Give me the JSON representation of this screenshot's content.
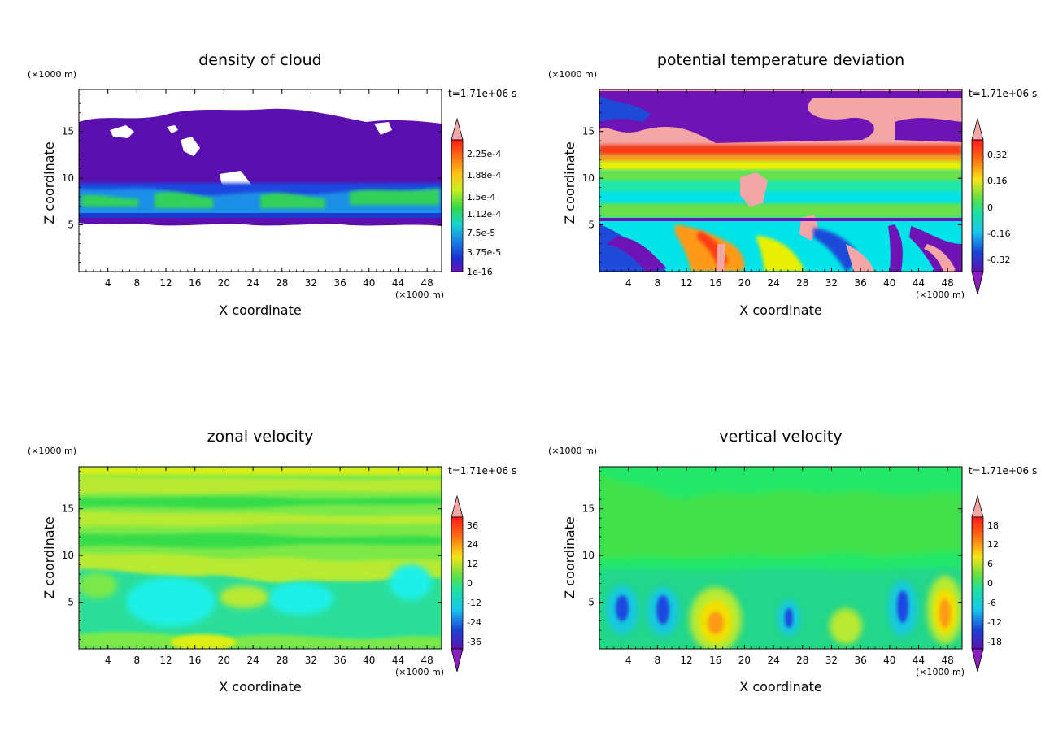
{
  "panels": [
    {
      "id": "cloud",
      "title": "density of cloud",
      "xlabel": "X coordinate",
      "ylabel": "Z coordinate",
      "x_unit": "(×1000 m)",
      "z_unit": "(×1000 m)",
      "time_label": "t=1.71e+06 s",
      "x_ticks": [
        "4",
        "8",
        "12",
        "16",
        "20",
        "24",
        "28",
        "32",
        "36",
        "40",
        "44",
        "48"
      ],
      "z_ticks": [
        "5",
        "10",
        "15"
      ],
      "colorbar_labels": [
        "2.25e-4",
        "1.88e-4",
        "1.5e-4",
        "1.12e-4",
        "7.5e-5",
        "3.75e-5",
        "1e-16"
      ],
      "colors": {
        "background": "#ffffff",
        "primary": "#5a0fae",
        "band": "#1a47e0",
        "accent": "#31d25a"
      }
    },
    {
      "id": "theta",
      "title": "potential temperature deviation",
      "xlabel": "X coordinate",
      "ylabel": "Z coordinate",
      "x_unit": "(×1000 m)",
      "z_unit": "(×1000 m)",
      "time_label": "t=1.71e+06 s",
      "x_ticks": [
        "4",
        "8",
        "12",
        "16",
        "20",
        "24",
        "28",
        "32",
        "36",
        "40",
        "44",
        "48"
      ],
      "z_ticks": [
        "5",
        "10",
        "15"
      ],
      "colorbar_labels": [
        "0.32",
        "0.16",
        "0",
        "-0.16",
        "-0.32"
      ],
      "colors": {
        "background": "#00e3e8",
        "primary": "#f4a6a6",
        "band": "#6e14b4",
        "accent": "#ff3a17"
      }
    },
    {
      "id": "zonal",
      "title": "zonal velocity",
      "xlabel": "X coordinate",
      "ylabel": "Z coordinate",
      "x_unit": "(×1000 m)",
      "z_unit": "(×1000 m)",
      "time_label": "t=1.71e+06 s",
      "x_ticks": [
        "4",
        "8",
        "12",
        "16",
        "20",
        "24",
        "28",
        "32",
        "36",
        "40",
        "44",
        "48"
      ],
      "z_ticks": [
        "5",
        "10",
        "15"
      ],
      "colorbar_labels": [
        "36",
        "24",
        "12",
        "0",
        "-12",
        "-24",
        "-36"
      ],
      "colors": {
        "background": "#7ce848",
        "primary": "#b8ea32",
        "band": "#2cde9a",
        "accent": "#1ff0e8"
      }
    },
    {
      "id": "vertical",
      "title": "vertical velocity",
      "xlabel": "X coordinate",
      "ylabel": "Z coordinate",
      "x_unit": "(×1000 m)",
      "z_unit": "(×1000 m)",
      "time_label": "t=1.71e+06 s",
      "x_ticks": [
        "4",
        "8",
        "12",
        "16",
        "20",
        "24",
        "28",
        "32",
        "36",
        "40",
        "44",
        "48"
      ],
      "z_ticks": [
        "5",
        "10",
        "15"
      ],
      "colorbar_labels": [
        "18",
        "12",
        "6",
        "0",
        "-6",
        "-12",
        "-18"
      ],
      "colors": {
        "background": "#22e86a",
        "primary": "#48e43a",
        "band": "#19c8e0",
        "accent": "#ff9a14"
      }
    }
  ],
  "chart_data": [
    {
      "type": "heatmap",
      "title": "density of cloud",
      "xlabel": "X coordinate",
      "ylabel": "Z coordinate",
      "xlim": [
        0,
        50
      ],
      "ylim": [
        0,
        19.5
      ],
      "x_ticks": [
        4,
        8,
        12,
        16,
        20,
        24,
        28,
        32,
        36,
        40,
        44,
        48
      ],
      "z_ticks": [
        5,
        10,
        15
      ],
      "colorbar_levels": [
        1e-16,
        3.75e-05,
        7.5e-05,
        0.000112,
        0.00015,
        0.000188,
        0.000225
      ],
      "regions": [
        {
          "description": "thin anvil",
          "z_range": [
            10,
            16.5
          ],
          "level": 1e-16
        },
        {
          "description": "dense lower cloud",
          "z_range": [
            5.5,
            10
          ],
          "level": 0.000112
        }
      ]
    },
    {
      "type": "heatmap",
      "title": "potential temperature deviation",
      "xlabel": "X coordinate",
      "ylabel": "Z coordinate",
      "xlim": [
        0,
        50
      ],
      "ylim": [
        0,
        19.5
      ],
      "x_ticks": [
        4,
        8,
        12,
        16,
        20,
        24,
        28,
        32,
        36,
        40,
        44,
        48
      ],
      "z_ticks": [
        5,
        10,
        15
      ],
      "colorbar_levels": [
        -0.32,
        -0.16,
        0,
        0.16,
        0.32
      ]
    },
    {
      "type": "heatmap",
      "title": "zonal velocity",
      "xlabel": "X coordinate",
      "ylabel": "Z coordinate",
      "xlim": [
        0,
        50
      ],
      "ylim": [
        0,
        19.5
      ],
      "x_ticks": [
        4,
        8,
        12,
        16,
        20,
        24,
        28,
        32,
        36,
        40,
        44,
        48
      ],
      "z_ticks": [
        5,
        10,
        15
      ],
      "colorbar_levels": [
        -36,
        -24,
        -12,
        0,
        12,
        24,
        36
      ]
    },
    {
      "type": "heatmap",
      "title": "vertical velocity",
      "xlabel": "X coordinate",
      "ylabel": "Z coordinate",
      "xlim": [
        0,
        50
      ],
      "ylim": [
        0,
        19.5
      ],
      "x_ticks": [
        4,
        8,
        12,
        16,
        20,
        24,
        28,
        32,
        36,
        40,
        44,
        48
      ],
      "z_ticks": [
        5,
        10,
        15
      ],
      "colorbar_levels": [
        -18,
        -12,
        -6,
        0,
        6,
        12,
        18
      ],
      "features": [
        {
          "description": "updraft",
          "x": 17,
          "z": 3,
          "level": 12
        },
        {
          "description": "updraft",
          "x": 47.5,
          "z": 4,
          "level": 12
        },
        {
          "description": "downdraft",
          "x": 3,
          "z": 4,
          "level": -12
        },
        {
          "description": "downdraft",
          "x": 42,
          "z": 4,
          "level": -12
        }
      ]
    }
  ]
}
